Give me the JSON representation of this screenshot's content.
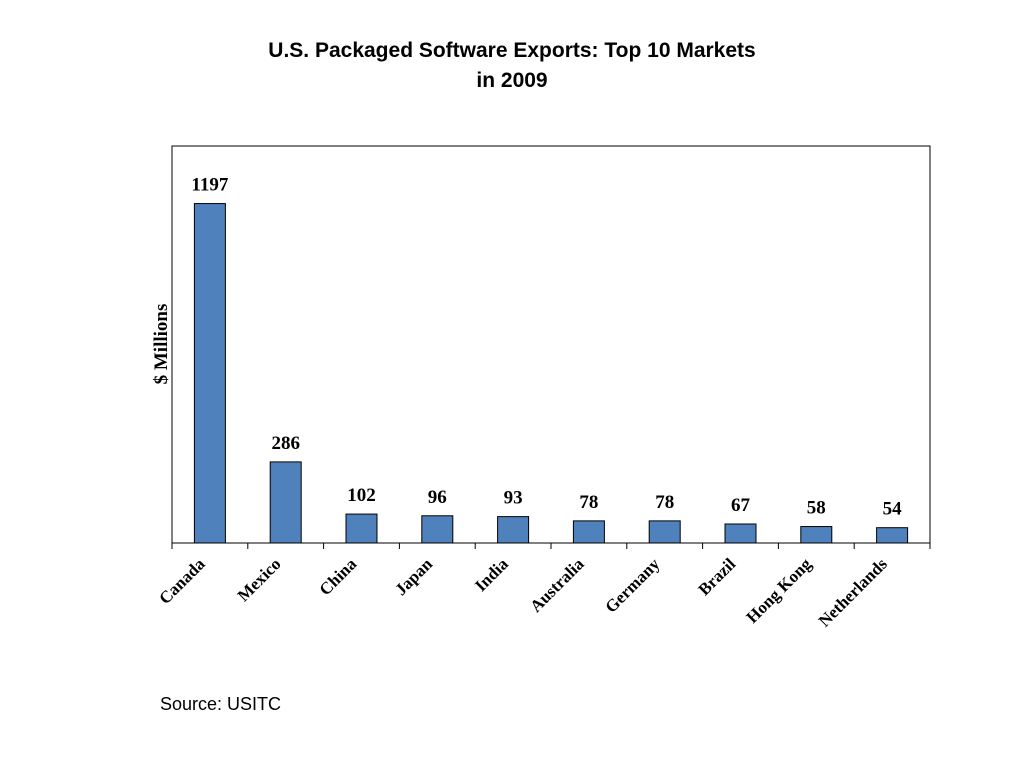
{
  "page": {
    "title_line1": "U.S.  Packaged Software Exports: Top 10 Markets",
    "title_line2": "in 2009",
    "source": "Source:  USITC"
  },
  "chart_data": {
    "type": "bar",
    "title": "U.S.  Packaged Software Exports: Top 10 Markets in 2009",
    "xlabel": "",
    "ylabel": "$ Millions",
    "categories": [
      "Canada",
      "Mexico",
      "China",
      "Japan",
      "India",
      "Australia",
      "Germany",
      "Brazil",
      "Hong Kong",
      "Netherlands"
    ],
    "values": [
      1197,
      286,
      102,
      96,
      93,
      78,
      78,
      67,
      58,
      54
    ],
    "ylim": [
      0,
      1400
    ],
    "bar_color": "#4F81BD",
    "bar_outline_color": "#000000",
    "data_labels": true,
    "grid": false,
    "legend": "none"
  }
}
